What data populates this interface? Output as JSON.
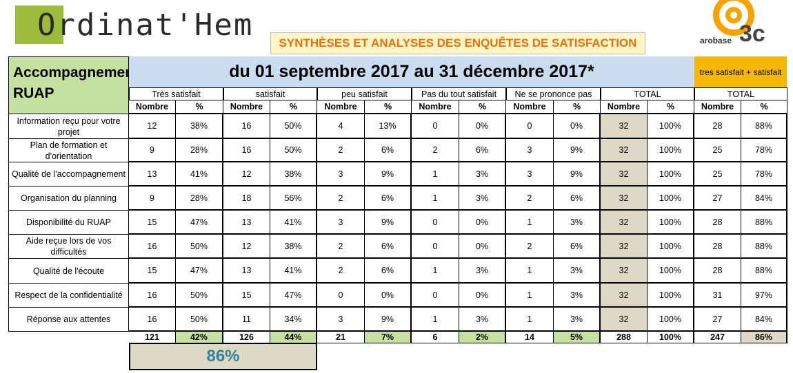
{
  "logo": {
    "text": "Ordinat'Hem"
  },
  "arobase": {
    "word": "arobase",
    "big": "3c"
  },
  "banner": "SYNTHÈSES ET ANALYSES DES ENQUÊTES DE SATISFACTION",
  "label_header": "Accompagnement RUAP",
  "period": "du 01 septembre 2017 au 31 décembre 2017*",
  "sat_box": "tres satisfait + satisfait",
  "groups": [
    "Très satisfait",
    "satisfait",
    "peu satisfait",
    "Pas du tout satisfait",
    "Ne se prononce pas",
    "TOTAL",
    "TOTAL"
  ],
  "subheaders": [
    "Nombre",
    "%"
  ],
  "rows": [
    {
      "label": "Information reçu pour votre projet",
      "values": [
        "12",
        "38%",
        "16",
        "50%",
        "4",
        "13%",
        "0",
        "0%",
        "0",
        "0%",
        "32",
        "100%",
        "28",
        "88%"
      ]
    },
    {
      "label": "Plan de formation et d'orientation",
      "values": [
        "9",
        "28%",
        "16",
        "50%",
        "2",
        "6%",
        "2",
        "6%",
        "3",
        "9%",
        "32",
        "100%",
        "25",
        "78%"
      ]
    },
    {
      "label": "Qualité de l'accompagnement",
      "values": [
        "13",
        "41%",
        "12",
        "38%",
        "3",
        "9%",
        "1",
        "3%",
        "3",
        "9%",
        "32",
        "100%",
        "25",
        "78%"
      ]
    },
    {
      "label": "Organisation du planning",
      "values": [
        "9",
        "28%",
        "18",
        "56%",
        "2",
        "6%",
        "1",
        "3%",
        "2",
        "6%",
        "32",
        "100%",
        "27",
        "84%"
      ]
    },
    {
      "label": "Disponibilité du RUAP",
      "values": [
        "15",
        "47%",
        "13",
        "41%",
        "3",
        "9%",
        "0",
        "0%",
        "1",
        "3%",
        "32",
        "100%",
        "28",
        "88%"
      ]
    },
    {
      "label": "Aide reçue lors de vos difficultés",
      "values": [
        "16",
        "50%",
        "12",
        "38%",
        "2",
        "6%",
        "0",
        "0%",
        "2",
        "6%",
        "32",
        "100%",
        "28",
        "88%"
      ]
    },
    {
      "label": "Qualité de l'écoute",
      "values": [
        "15",
        "47%",
        "13",
        "41%",
        "2",
        "6%",
        "1",
        "3%",
        "1",
        "3%",
        "32",
        "100%",
        "28",
        "88%"
      ]
    },
    {
      "label": "Respect de la confidentialité",
      "values": [
        "16",
        "50%",
        "15",
        "47%",
        "0",
        "0%",
        "0",
        "0%",
        "1",
        "3%",
        "32",
        "100%",
        "31",
        "97%"
      ]
    },
    {
      "label": "Réponse aux attentes",
      "values": [
        "16",
        "50%",
        "11",
        "34%",
        "3",
        "9%",
        "1",
        "3%",
        "1",
        "3%",
        "32",
        "100%",
        "27",
        "84%"
      ]
    }
  ],
  "totals": [
    "121",
    "42%",
    "126",
    "44%",
    "21",
    "7%",
    "6",
    "2%",
    "14",
    "5%",
    "288",
    "100%",
    "247",
    "86%"
  ],
  "big_percentage": "86%",
  "colors": {
    "green_header": "#c6e0a0",
    "blue_header": "#c9dcf0",
    "gold": "#f5b800",
    "total_fill": "#ddd9c4",
    "pct_green": "#c6e0a0",
    "banner_text": "#e8700a",
    "big_pct_text": "#31849b"
  }
}
